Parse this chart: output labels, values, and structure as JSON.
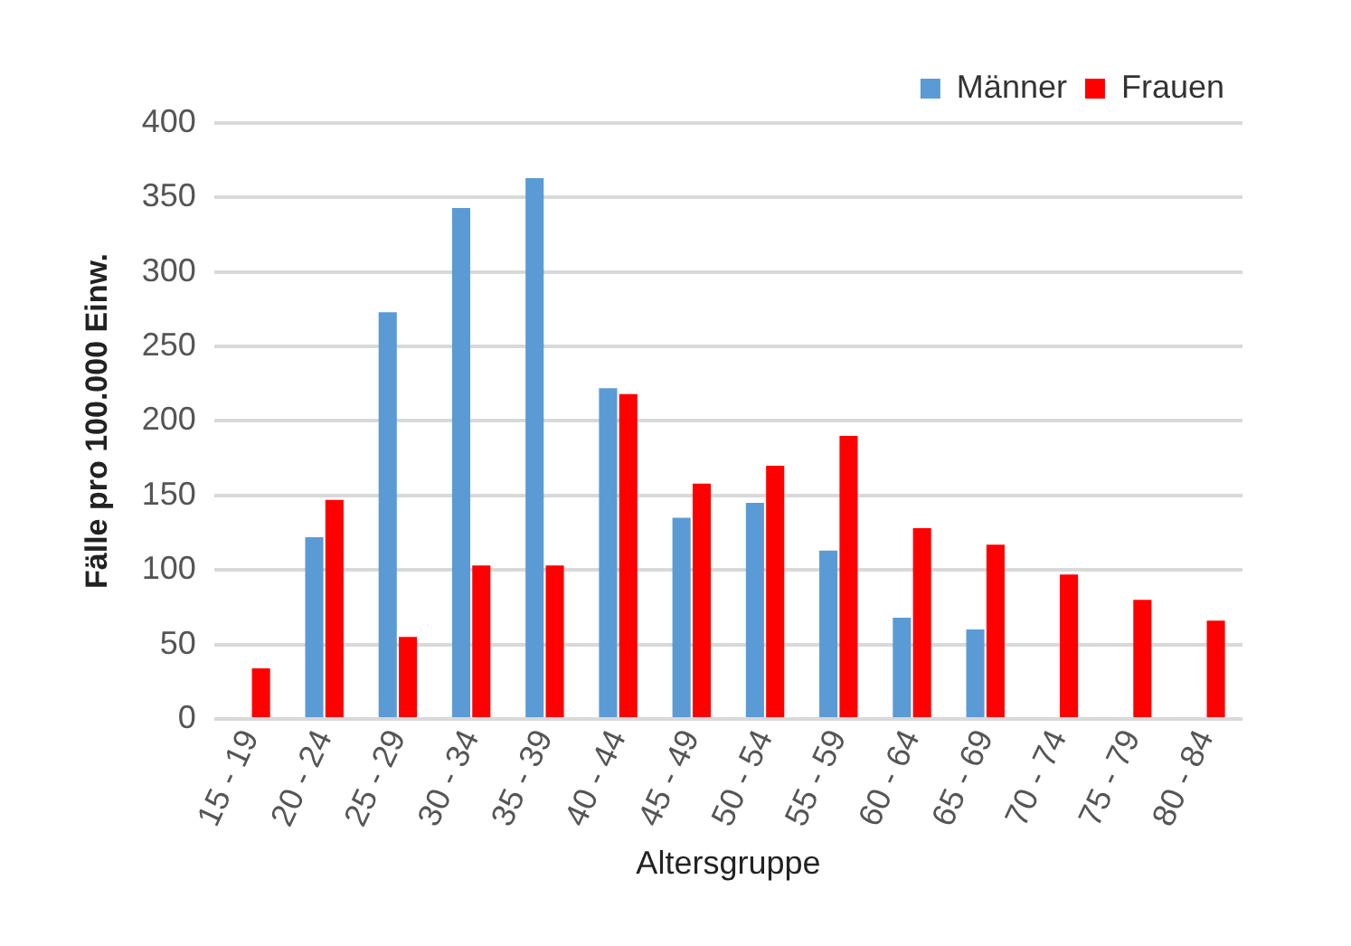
{
  "chart_data": {
    "type": "bar",
    "xlabel": "Altersgruppe",
    "ylabel": "Fälle pro 100.000 Einw.",
    "categories": [
      "15 - 19",
      "20 - 24",
      "25 - 29",
      "30 - 34",
      "35 - 39",
      "40 - 44",
      "45 - 49",
      "50 - 54",
      "55 - 59",
      "60 - 64",
      "65 - 69",
      "70 - 74",
      "75 - 79",
      "80 - 84"
    ],
    "series": [
      {
        "name": "Männer",
        "color": "#5b9bd5",
        "values": [
          null,
          122,
          273,
          343,
          363,
          222,
          135,
          145,
          113,
          68,
          60,
          null,
          null,
          null
        ]
      },
      {
        "name": "Frauen",
        "color": "#ff0000",
        "values": [
          34,
          147,
          55,
          103,
          103,
          218,
          158,
          170,
          190,
          128,
          117,
          97,
          80,
          66
        ]
      }
    ],
    "ylim": [
      0,
      400
    ],
    "yticks": [
      0,
      50,
      100,
      150,
      200,
      250,
      300,
      350,
      400
    ],
    "grid": "y",
    "legend": "top right"
  }
}
